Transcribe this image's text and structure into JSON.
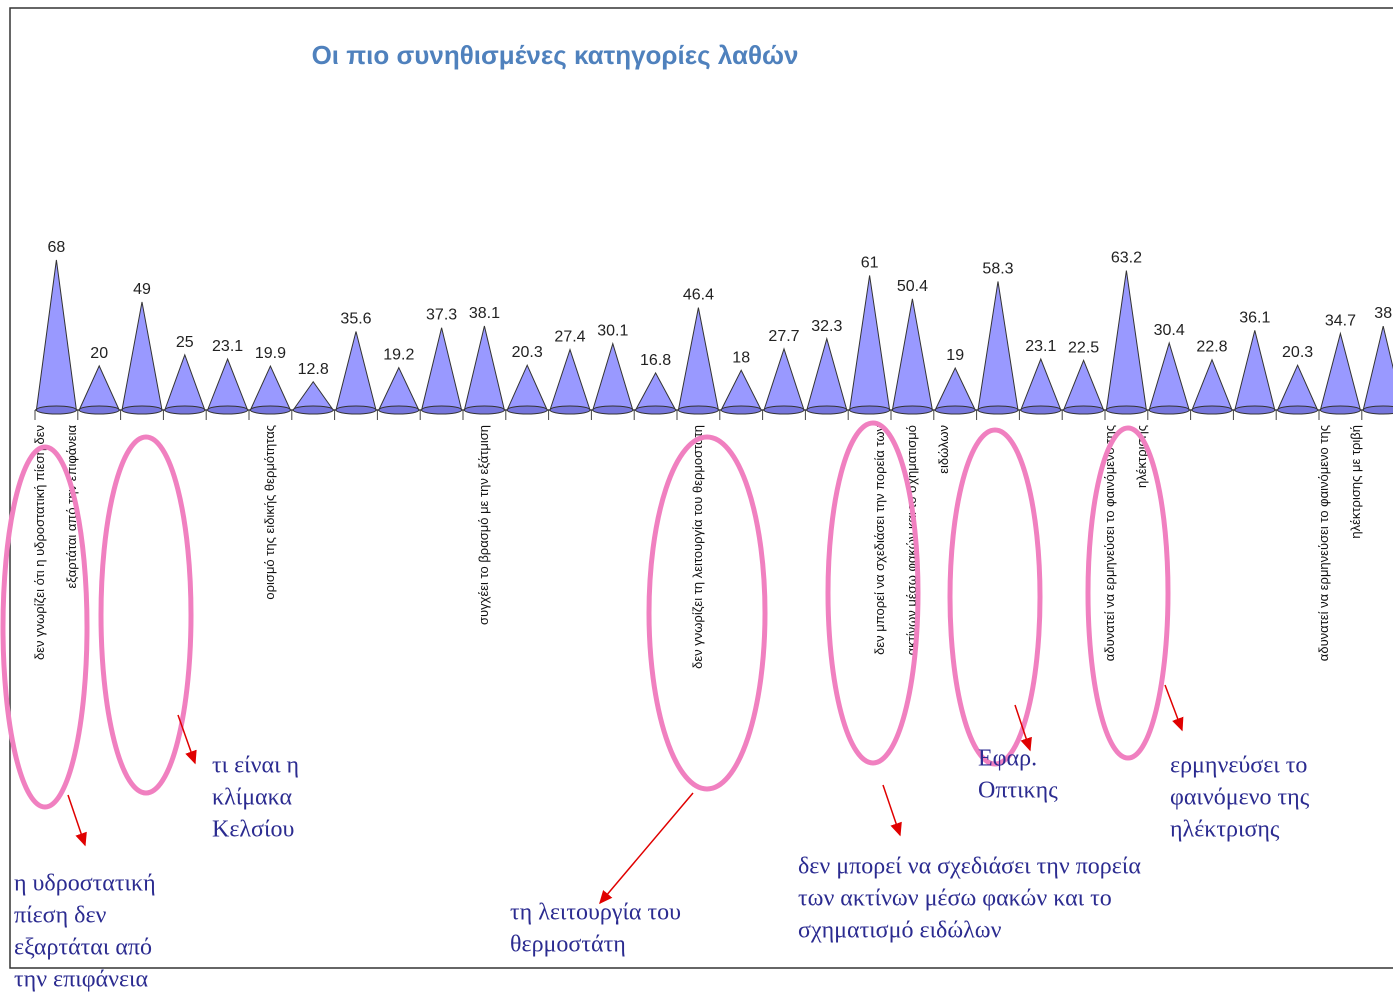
{
  "chart_data": {
    "type": "cone",
    "title": "Οι πιο συνηθισμένες κατηγορίες λαθών",
    "color": "#9999ff",
    "values": [
      68,
      20,
      49,
      25,
      23.1,
      19.9,
      12.8,
      35.6,
      19.2,
      37.3,
      38.1,
      20.3,
      27.4,
      30.1,
      16.8,
      46.4,
      18,
      27.7,
      32.3,
      61,
      50.4,
      19,
      58.3,
      23.1,
      22.5,
      63.2,
      30.4,
      22.8,
      36.1,
      20.3,
      34.7,
      38
    ],
    "categories": [
      [
        "δεν γνωρίζει ότι η υδροστατική πίεση δεν",
        "εξαρτάται από την επιφάνεια"
      ],
      null,
      null,
      null,
      null,
      [
        "ορισμό της ειδικής θερμότητας"
      ],
      null,
      null,
      null,
      null,
      [
        "συγχέει το βρασμό με την εξάτμιση"
      ],
      null,
      null,
      null,
      null,
      [
        "δεν γνωρίζει τη λειτουργία του θερμοστάτη"
      ],
      null,
      null,
      null,
      null,
      [
        "δεν μπορεί να σχεδιάσει την πορεία των",
        "ακτίνων μέσω φακών και το σχηματισμό",
        "ειδώλων"
      ],
      null,
      null,
      null,
      null,
      [
        "αδυνατεί να ερμηνεύσει το φαινόμενο της",
        "ηλέκτρισης"
      ],
      null,
      null,
      null,
      null,
      [
        "αδυνατεί να ερμηνεύσει το φαινόμενο της",
        "ηλέκτρισης με τριβή"
      ],
      null
    ],
    "annotations": [
      [
        "η υδροστατική",
        "πίεση δεν",
        "εξαρτάται από",
        "την επιφάνεια"
      ],
      [
        "τι είναι η",
        "κλίμακα",
        "Κελσίου"
      ],
      [
        "τη λειτουργία του",
        "θερμοστάτη"
      ],
      [
        "δεν μπορεί να σχεδιάσει την πορεία",
        "των ακτίνων μέσω φακών και το",
        "σχηματισμό ειδώλων"
      ],
      [
        "Εφαρ.",
        "Οπτικης"
      ],
      [
        "ερμηνεύσει το",
        "φαινόμενο της",
        "ηλέκτρισης"
      ]
    ]
  }
}
